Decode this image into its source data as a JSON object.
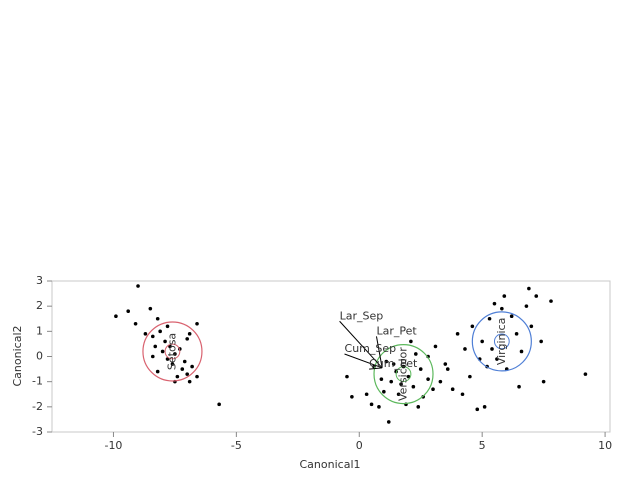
{
  "chart_data": {
    "type": "scatter",
    "x_label": "Canonical1",
    "y_label": "Canonical2",
    "xlim": [
      -12.5,
      10.2
    ],
    "ylim": [
      -3,
      3
    ],
    "xticks": [
      -10,
      -5,
      0,
      5,
      10
    ],
    "yticks": [
      -3,
      -2,
      -1,
      0,
      1,
      2,
      3
    ],
    "point_color": "#000000",
    "series": [
      {
        "name": "Setosa",
        "color": "#d9626f",
        "center": [
          -7.6,
          0.2
        ],
        "radius": 1.2,
        "inner_radius": 0.3,
        "x": [
          -9.0,
          -9.9,
          -9.4,
          -9.1,
          -8.5,
          -8.2,
          -8.7,
          -8.4,
          -8.1,
          -7.9,
          -7.7,
          -8.3,
          -8.0,
          -7.5,
          -7.8,
          -7.3,
          -7.0,
          -6.6,
          -7.6,
          -7.2,
          -7.4,
          -7.0,
          -6.8,
          -6.6,
          -7.5,
          -6.9,
          -8.2,
          -8.4,
          -7.1,
          -5.7,
          -7.8,
          -6.9
        ],
        "y": [
          2.8,
          1.6,
          1.8,
          1.3,
          1.9,
          1.5,
          0.9,
          0.8,
          1.0,
          0.6,
          0.4,
          0.4,
          0.2,
          0.1,
          -0.1,
          0.3,
          0.7,
          1.3,
          -0.3,
          -0.5,
          -0.8,
          -0.7,
          -0.4,
          -0.8,
          -1.0,
          -1.0,
          -0.6,
          0.0,
          -0.2,
          -1.9,
          1.2,
          0.9
        ]
      },
      {
        "name": "Versicolor",
        "color": "#5cb85c",
        "center": [
          1.8,
          -0.7
        ],
        "radius": 1.2,
        "inner_radius": 0.3,
        "x": [
          -0.5,
          -0.3,
          0.3,
          0.5,
          0.8,
          1.2,
          1.0,
          1.3,
          1.5,
          1.8,
          2.0,
          2.2,
          2.5,
          2.6,
          2.8,
          3.0,
          1.6,
          1.9,
          2.3,
          2.8,
          0.6,
          1.1,
          3.3,
          3.5,
          1.4,
          2.1,
          0.9,
          1.7,
          2.4,
          3.1
        ],
        "y": [
          -0.8,
          -1.6,
          -1.5,
          -1.9,
          -2.0,
          -2.6,
          -1.4,
          -1.0,
          -0.6,
          -0.4,
          -0.8,
          -1.2,
          -0.5,
          -1.6,
          -0.9,
          -1.3,
          -1.5,
          -1.9,
          0.1,
          0.0,
          -0.4,
          -0.2,
          -1.0,
          -0.3,
          -0.3,
          0.6,
          -0.9,
          -1.1,
          -2.0,
          0.4
        ]
      },
      {
        "name": "Virginica",
        "color": "#4f7fd6",
        "center": [
          5.8,
          0.6
        ],
        "radius": 1.2,
        "inner_radius": 0.3,
        "x": [
          3.6,
          3.8,
          4.0,
          4.3,
          4.6,
          4.2,
          4.8,
          5.1,
          5.0,
          5.3,
          5.4,
          5.6,
          5.8,
          5.9,
          6.2,
          6.4,
          6.6,
          6.8,
          7.0,
          7.2,
          7.5,
          7.8,
          6.0,
          6.5,
          5.2,
          4.9,
          6.9,
          7.4,
          9.2,
          5.5,
          4.5
        ],
        "y": [
          -0.5,
          -1.3,
          0.9,
          0.3,
          1.2,
          -1.5,
          -2.1,
          -2.0,
          0.6,
          1.5,
          0.3,
          -0.1,
          1.9,
          2.4,
          1.6,
          0.9,
          0.2,
          2.0,
          1.2,
          2.4,
          -1.0,
          2.2,
          -0.5,
          -1.2,
          -0.4,
          -0.1,
          2.7,
          0.6,
          -0.7,
          2.1,
          -0.8
        ]
      }
    ],
    "ray_origin": [
      0.93,
      -0.45
    ],
    "rays": [
      {
        "label": "Lar_Sep",
        "x": -0.8,
        "y": 1.4
      },
      {
        "label": "Lar_Pet",
        "x": 0.7,
        "y": 0.8
      },
      {
        "label": "Cum_Sep",
        "x": -0.6,
        "y": 0.1
      },
      {
        "label": "Cum_Pet",
        "x": 0.4,
        "y": -0.5
      }
    ]
  }
}
